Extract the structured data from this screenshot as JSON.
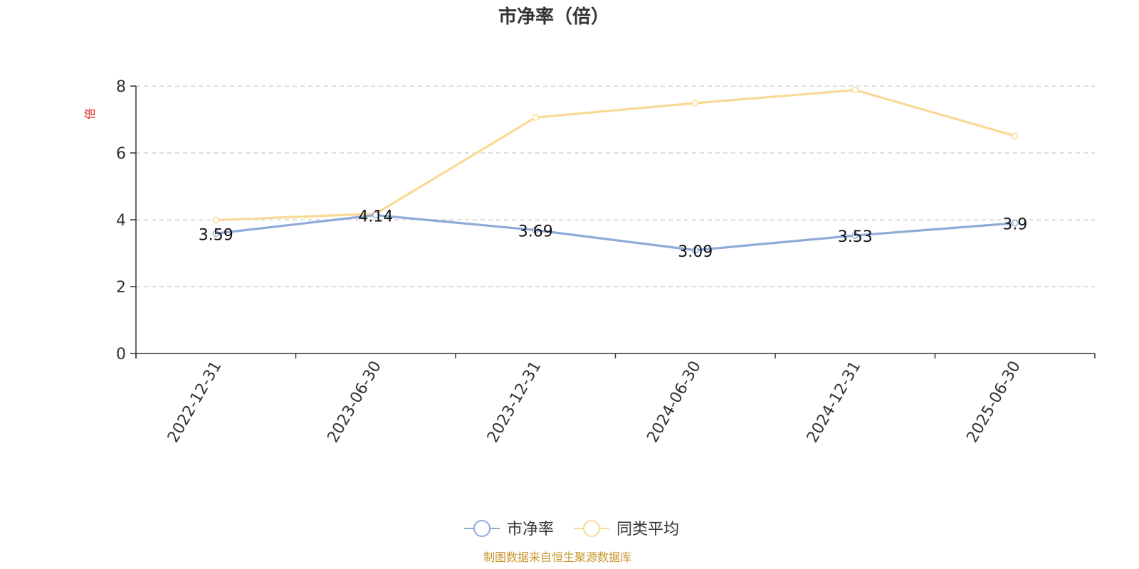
{
  "chart_data": {
    "type": "line",
    "title": "市净率（倍）",
    "ylabel": "倍",
    "xlabel": "",
    "categories": [
      "2022-12-31",
      "2023-06-30",
      "2023-12-31",
      "2024-06-30",
      "2024-12-31",
      "2025-06-30"
    ],
    "ylim": [
      0,
      8
    ],
    "yticks": [
      0,
      2,
      4,
      6,
      8
    ],
    "grid": true,
    "legend_position": "bottom",
    "series": [
      {
        "name": "市净率",
        "values": [
          3.59,
          4.14,
          3.69,
          3.09,
          3.53,
          3.9
        ],
        "data_labels": [
          "3.59",
          "4.14",
          "3.69",
          "3.09",
          "3.53",
          "3.9"
        ],
        "color": "#8eaad9"
      },
      {
        "name": "同类平均",
        "values": [
          3.99,
          4.18,
          7.06,
          7.49,
          7.88,
          6.51
        ],
        "color": "#fad994"
      }
    ]
  },
  "source_note": "制图数据来自恒生聚源数据库",
  "colors": {
    "axis": "#333333",
    "grid": "#cccccc",
    "unit_label": "#e02020",
    "source_note": "#c9952b"
  }
}
